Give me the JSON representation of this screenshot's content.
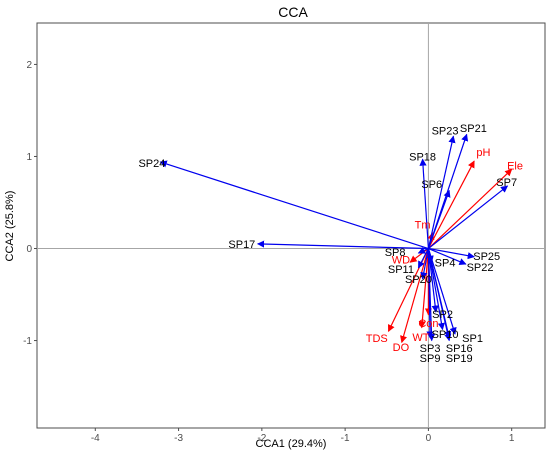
{
  "chart_data": {
    "type": "scatter",
    "subtype": "biplot-arrows",
    "title": "CCA",
    "xlabel": "CCA1 (29.4%)",
    "ylabel": "CCA2 (25.8%)",
    "xlim": [
      -4.7,
      1.4
    ],
    "ylim": [
      -1.95,
      2.45
    ],
    "xticks": [
      -4,
      -3,
      -2,
      -1,
      0,
      1
    ],
    "yticks": [
      -1,
      0,
      1,
      2
    ],
    "grid": false,
    "zero_lines": true,
    "legend": "none",
    "colors": {
      "species": "#0000ee",
      "environment": "#ff0000",
      "zero_line": "#a6a6a6",
      "frame": "#4d4d4d"
    },
    "species": [
      {
        "label": "SP24",
        "x": -3.22,
        "y": 0.94,
        "lx": -3.32,
        "ly": 0.93
      },
      {
        "label": "SP17",
        "x": -2.05,
        "y": 0.05,
        "lx": -2.24,
        "ly": 0.05
      },
      {
        "label": "SP18",
        "x": -0.07,
        "y": 0.97,
        "lx": -0.07,
        "ly": 1.0
      },
      {
        "label": "SP23",
        "x": 0.3,
        "y": 1.22,
        "lx": 0.2,
        "ly": 1.28
      },
      {
        "label": "SP21",
        "x": 0.46,
        "y": 1.24,
        "lx": 0.54,
        "ly": 1.31
      },
      {
        "label": "SP6",
        "x": 0.25,
        "y": 0.63,
        "lx": 0.04,
        "ly": 0.7
      },
      {
        "label": "SP7",
        "x": 0.95,
        "y": 0.68,
        "lx": 0.94,
        "ly": 0.72
      },
      {
        "label": "SP25",
        "x": 0.55,
        "y": -0.09,
        "lx": 0.7,
        "ly": -0.08
      },
      {
        "label": "SP22",
        "x": 0.45,
        "y": -0.17,
        "lx": 0.62,
        "ly": -0.2
      },
      {
        "label": "SP4",
        "x": 0.04,
        "y": -0.15,
        "lx": 0.2,
        "ly": -0.15
      },
      {
        "label": "SP8",
        "x": -0.12,
        "y": -0.05,
        "lx": -0.4,
        "ly": -0.04
      },
      {
        "label": "SP11",
        "x": -0.12,
        "y": -0.21,
        "lx": -0.33,
        "ly": -0.22
      },
      {
        "label": "SP20",
        "x": -0.07,
        "y": -0.33,
        "lx": -0.12,
        "ly": -0.33
      },
      {
        "label": "SP2",
        "x": 0.09,
        "y": -0.69,
        "lx": 0.17,
        "ly": -0.71
      },
      {
        "label": "SP10",
        "x": 0.17,
        "y": -0.88,
        "lx": 0.2,
        "ly": -0.93
      },
      {
        "label": "SP1",
        "x": 0.32,
        "y": -0.93,
        "lx": 0.53,
        "ly": -0.97
      },
      {
        "label": "SP16",
        "x": 0.25,
        "y": -0.97,
        "lx": 0.37,
        "ly": -1.08
      },
      {
        "label": "SP19",
        "x": 0.25,
        "y": -1.0,
        "lx": 0.37,
        "ly": -1.19
      },
      {
        "label": "SP3",
        "x": 0.02,
        "y": -0.97,
        "lx": 0.02,
        "ly": -1.08
      },
      {
        "label": "SP9",
        "x": 0.04,
        "y": -1.0,
        "lx": 0.02,
        "ly": -1.19
      }
    ],
    "environment": [
      {
        "label": "pH",
        "x": 0.55,
        "y": 0.95,
        "lx": 0.66,
        "ly": 1.05
      },
      {
        "label": "Ele",
        "x": 1.0,
        "y": 0.86,
        "lx": 1.04,
        "ly": 0.9
      },
      {
        "label": "Tm",
        "x": 0.05,
        "y": 0.17,
        "lx": -0.07,
        "ly": 0.26
      },
      {
        "label": "WD",
        "x": -0.22,
        "y": -0.15,
        "lx": -0.33,
        "ly": -0.12
      },
      {
        "label": "Con",
        "x": 0.0,
        "y": -0.72,
        "lx": 0.0,
        "ly": -0.81
      },
      {
        "label": "WT",
        "x": -0.08,
        "y": -0.86,
        "lx": -0.09,
        "ly": -0.96
      },
      {
        "label": "TDS",
        "x": -0.48,
        "y": -0.9,
        "lx": -0.62,
        "ly": -0.97
      },
      {
        "label": "DO",
        "x": -0.32,
        "y": -1.02,
        "lx": -0.33,
        "ly": -1.07
      }
    ]
  }
}
